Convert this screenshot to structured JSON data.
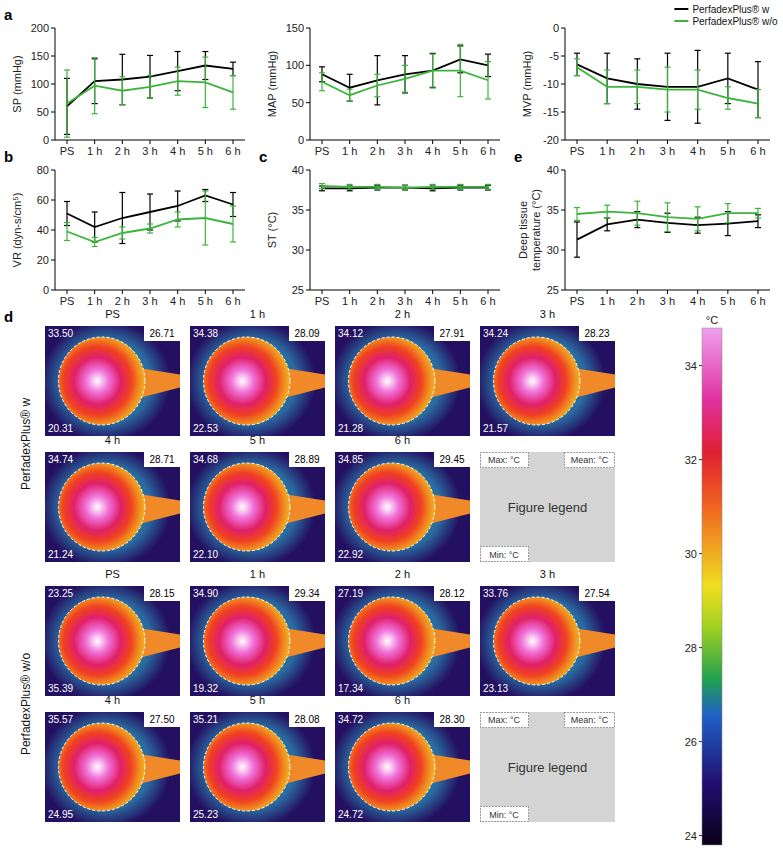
{
  "chart_data": [
    {
      "type": "line",
      "panel": "a",
      "ylabel": "SP (mmHg)",
      "categories": [
        "PS",
        "1 h",
        "2 h",
        "3 h",
        "4 h",
        "5 h",
        "6 h"
      ],
      "ylim": [
        0,
        200
      ],
      "yticks": [
        0,
        50,
        100,
        150,
        200
      ],
      "series": [
        {
          "color": "#000000",
          "values": [
            60,
            105,
            108,
            113,
            123,
            133,
            127
          ],
          "errors": [
            50,
            40,
            45,
            38,
            35,
            25,
            12
          ]
        },
        {
          "color": "#3cb43c",
          "values": [
            65,
            97,
            88,
            95,
            105,
            103,
            85
          ],
          "errors": [
            60,
            50,
            25,
            20,
            25,
            45,
            30
          ]
        }
      ]
    },
    {
      "type": "line",
      "ylabel": "MAP (mmHg)",
      "categories": [
        "PS",
        "1 h",
        "2 h",
        "3 h",
        "4 h",
        "5 h",
        "6 h"
      ],
      "ylim": [
        0,
        150
      ],
      "yticks": [
        0,
        50,
        100,
        150
      ],
      "series": [
        {
          "color": "#000000",
          "values": [
            88,
            70,
            80,
            88,
            93,
            108,
            100
          ],
          "errors": [
            10,
            18,
            33,
            25,
            23,
            18,
            15
          ]
        },
        {
          "color": "#3cb43c",
          "values": [
            78,
            60,
            73,
            82,
            93,
            93,
            80
          ],
          "errors": [
            12,
            8,
            15,
            18,
            22,
            35,
            25
          ]
        }
      ]
    },
    {
      "type": "line",
      "ylabel": "MVP (mmHg)",
      "categories": [
        "PS",
        "1 h",
        "2 h",
        "3 h",
        "4 h",
        "5 h",
        "6 h"
      ],
      "ylim": [
        -20,
        0
      ],
      "yticks": [
        -20,
        -15,
        -10,
        -5,
        0
      ],
      "legend": "top-right",
      "series": [
        {
          "name": "PerfadexPlus® w",
          "color": "#000000",
          "values": [
            -6.5,
            -9,
            -10,
            -10.5,
            -10.5,
            -9,
            -11
          ],
          "errors": [
            2,
            4.5,
            4.5,
            6,
            6.5,
            4.5,
            5
          ]
        },
        {
          "name": "PerfadexPlus® w/o",
          "color": "#3cb43c",
          "values": [
            -7,
            -10.5,
            -10.5,
            -11,
            -11,
            -12.5,
            -13.5
          ],
          "errors": [
            1.5,
            3,
            3,
            4,
            3.5,
            2,
            2.5
          ]
        }
      ]
    },
    {
      "type": "line",
      "panel": "b",
      "ylabel": "VR (dyn-s/cm⁵)",
      "categories": [
        "PS",
        "1 h",
        "2 h",
        "3 h",
        "4 h",
        "5 h",
        "6 h"
      ],
      "ylim": [
        0,
        80
      ],
      "yticks": [
        0,
        20,
        40,
        60,
        80
      ],
      "series": [
        {
          "color": "#000000",
          "values": [
            51,
            42,
            48,
            52,
            56,
            63,
            57
          ],
          "errors": [
            8,
            10,
            17,
            12,
            10,
            4,
            8
          ]
        },
        {
          "color": "#3cb43c",
          "values": [
            39,
            32,
            38,
            41,
            47,
            48,
            44
          ],
          "errors": [
            6,
            3,
            4,
            3,
            5,
            18,
            12
          ]
        }
      ]
    },
    {
      "type": "line",
      "panel": "c",
      "ylabel": "ST (°C)",
      "categories": [
        "PS",
        "1 h",
        "2 h",
        "3 h",
        "4 h",
        "5 h",
        "6 h"
      ],
      "ylim": [
        25,
        40
      ],
      "yticks": [
        25,
        30,
        35,
        40
      ],
      "series": [
        {
          "color": "#000000",
          "values": [
            37.7,
            37.7,
            37.8,
            37.8,
            37.7,
            37.8,
            37.8
          ],
          "errors": [
            0.3,
            0.3,
            0.3,
            0.3,
            0.3,
            0.3,
            0.3
          ]
        },
        {
          "color": "#3cb43c",
          "values": [
            38.0,
            37.9,
            37.9,
            37.8,
            37.9,
            37.9,
            37.9
          ],
          "errors": [
            0.3,
            0.3,
            0.3,
            0.3,
            0.3,
            0.3,
            0.3
          ]
        }
      ]
    },
    {
      "type": "line",
      "panel": "e",
      "ylabel": "Deep tissue temperature (°C)",
      "categories": [
        "PS",
        "1 h",
        "2 h",
        "3 h",
        "4 h",
        "5 h",
        "6 h"
      ],
      "ylim": [
        25,
        40
      ],
      "yticks": [
        25,
        30,
        35,
        40
      ],
      "series": [
        {
          "color": "#000000",
          "values": [
            31.3,
            33.2,
            33.8,
            33.4,
            33.1,
            33.3,
            33.6
          ],
          "errors": [
            2.2,
            0.8,
            1.0,
            1.2,
            1.0,
            1.5,
            0.8
          ]
        },
        {
          "color": "#3cb43c",
          "values": [
            34.5,
            34.8,
            34.6,
            34.1,
            33.9,
            34.6,
            34.6
          ],
          "errors": [
            0.8,
            0.8,
            1.5,
            1.8,
            1.5,
            1.2,
            0.6
          ]
        }
      ]
    }
  ],
  "thermal_images": {
    "panel": "d",
    "groups": [
      {
        "label": "PerfadexPlus® w",
        "panels": [
          {
            "title": "PS",
            "top_left": "33.50",
            "top_right": "26.71",
            "bottom_left": "20.31"
          },
          {
            "title": "1 h",
            "top_left": "34.38",
            "top_right": "28.09",
            "bottom_left": "22.53"
          },
          {
            "title": "2 h",
            "top_left": "34.12",
            "top_right": "27.91",
            "bottom_left": "21.28"
          },
          {
            "title": "3 h",
            "top_left": "34.24",
            "top_right": "28.23",
            "bottom_left": "21.57"
          },
          {
            "title": "4 h",
            "top_left": "34.74",
            "top_right": "28.71",
            "bottom_left": "21.24"
          },
          {
            "title": "5 h",
            "top_left": "34.68",
            "top_right": "28.89",
            "bottom_left": "22.10"
          },
          {
            "title": "6 h",
            "top_left": "34.85",
            "top_right": "29.45",
            "bottom_left": "22.92"
          }
        ],
        "legend": {
          "top_left": "Max: °C",
          "top_right": "Mean: °C",
          "center": "Figure legend",
          "bottom_left": "Min: °C"
        }
      },
      {
        "label": "PerfadexPlus® w/o",
        "panels": [
          {
            "title": "PS",
            "top_left": "23.25",
            "top_right": "28.15",
            "bottom_left": "35.39"
          },
          {
            "title": "1 h",
            "top_left": "34.90",
            "top_right": "29.34",
            "bottom_left": "19.32"
          },
          {
            "title": "2 h",
            "top_left": "27.19",
            "top_right": "28.12",
            "bottom_left": "17.34"
          },
          {
            "title": "3 h",
            "top_left": "33.76",
            "top_right": "27.54",
            "bottom_left": "23.13"
          },
          {
            "title": "4 h",
            "top_left": "35.57",
            "top_right": "27.50",
            "bottom_left": "24.95"
          },
          {
            "title": "5 h",
            "top_left": "35.21",
            "top_right": "28.08",
            "bottom_left": "25.23"
          },
          {
            "title": "6 h",
            "top_left": "34.72",
            "top_right": "28.30",
            "bottom_left": "24.72"
          }
        ],
        "legend": {
          "top_left": "Max: °C",
          "top_right": "Mean: °C",
          "center": "Figure legend",
          "bottom_left": "Min: °C"
        }
      }
    ],
    "colorbar": {
      "unit": "°C",
      "range": [
        23.8,
        34.8
      ],
      "ticks": [
        24,
        26,
        28,
        30,
        32,
        34
      ]
    }
  }
}
